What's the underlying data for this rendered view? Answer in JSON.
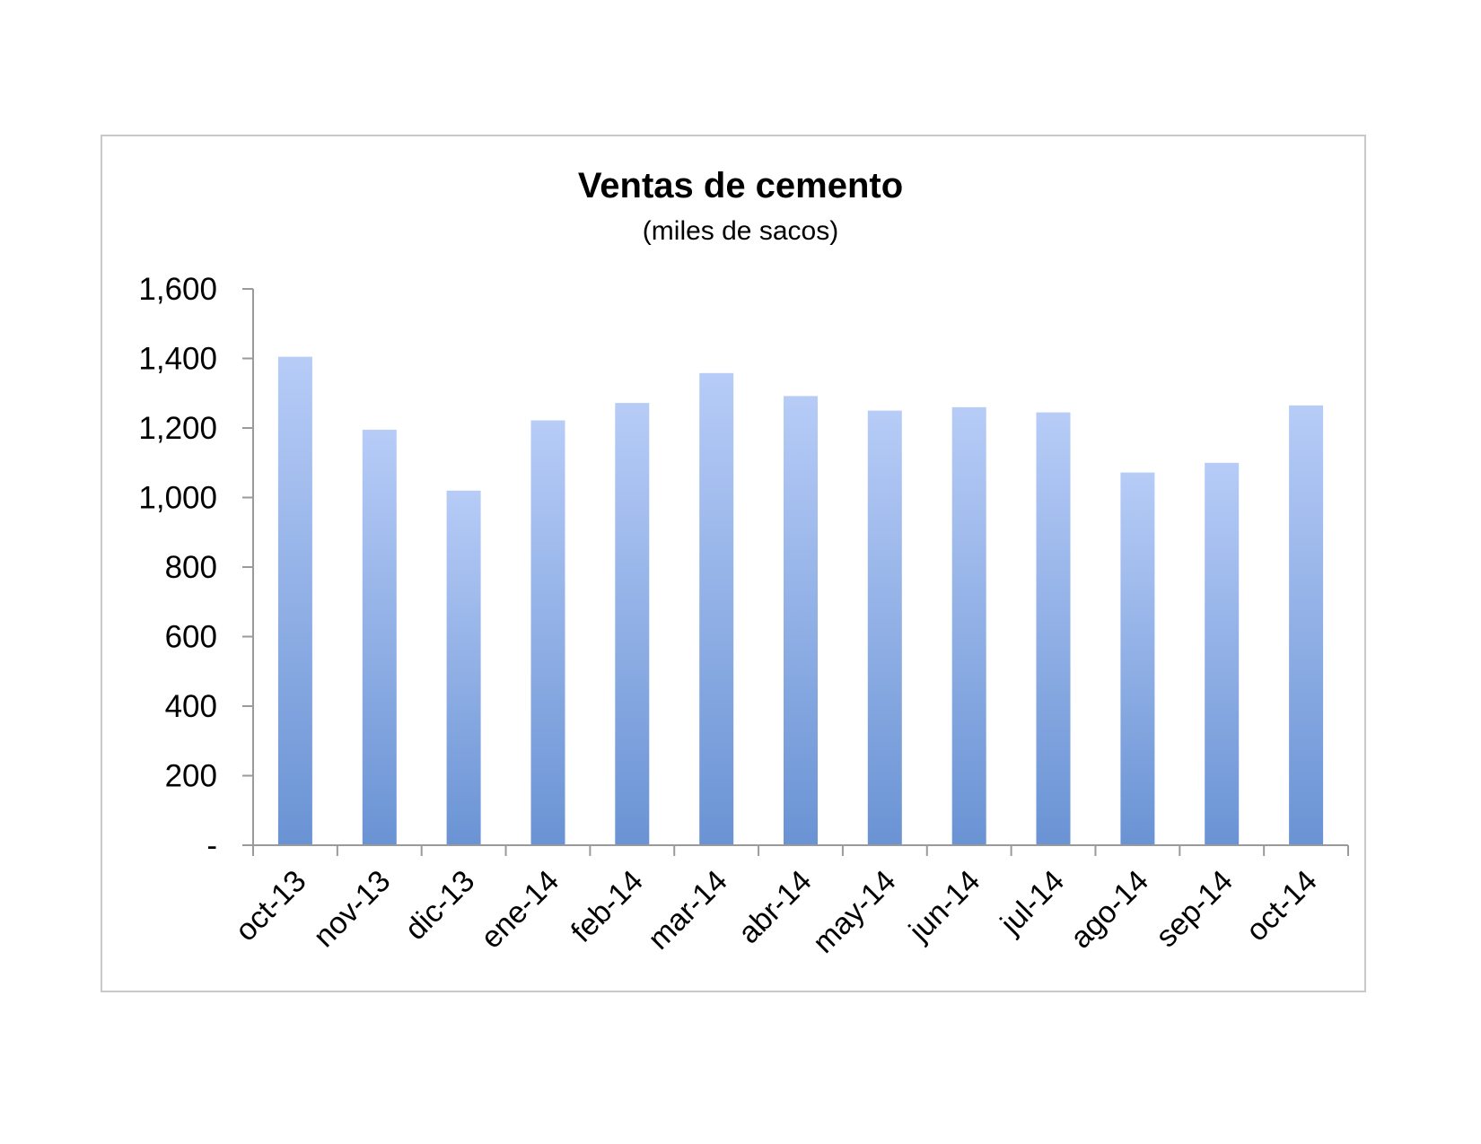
{
  "chart_data": {
    "type": "bar",
    "title": "Ventas de cemento",
    "subtitle": "(miles de sacos)",
    "xlabel": "",
    "ylabel": "",
    "categories": [
      "oct-13",
      "nov-13",
      "dic-13",
      "ene-14",
      "feb-14",
      "mar-14",
      "abr-14",
      "may-14",
      "jun-14",
      "jul-14",
      "ago-14",
      "sep-14",
      "oct-14"
    ],
    "values": [
      1405,
      1195,
      1020,
      1222,
      1272,
      1358,
      1292,
      1250,
      1260,
      1245,
      1072,
      1100,
      1265
    ],
    "ylim": [
      0,
      1600
    ],
    "yticks": [
      0,
      200,
      400,
      600,
      800,
      1000,
      1200,
      1400,
      1600
    ],
    "ytick_labels": [
      "-",
      "200",
      "400",
      "600",
      "800",
      "1,000",
      "1,200",
      "1,400",
      "1,600"
    ],
    "grid": false,
    "legend": "none",
    "colors": {
      "bar_top": "#b7ccf7",
      "bar_bottom": "#6a93d4",
      "axis": "#9a9a9a"
    }
  }
}
